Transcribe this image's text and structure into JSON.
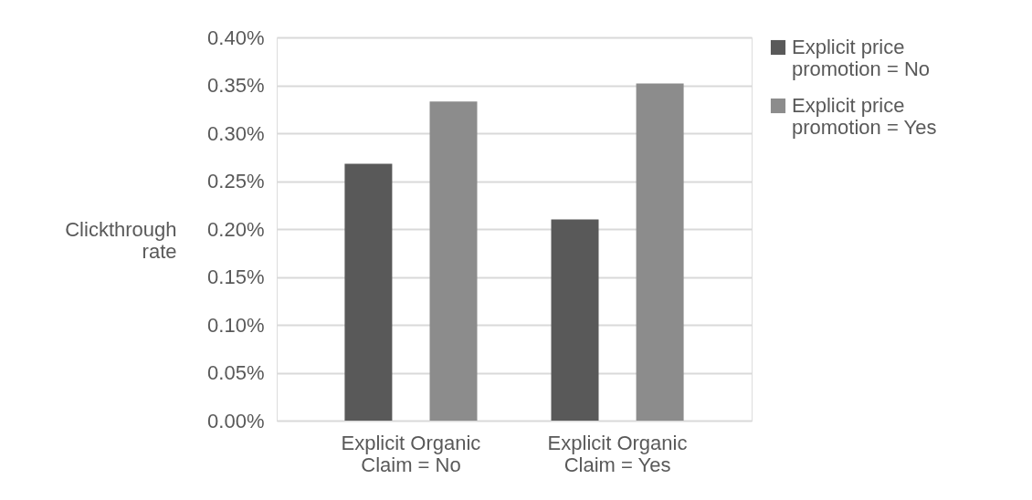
{
  "chart_data": {
    "type": "bar",
    "ylabel": "Clickthrough rate",
    "categories": [
      "Explicit Organic Claim = No",
      "Explicit Organic Claim = Yes"
    ],
    "series": [
      {
        "name": "Explicit price promotion = No",
        "color": "#595959",
        "values": [
          0.268,
          0.21
        ]
      },
      {
        "name": "Explicit price promotion = Yes",
        "color": "#8c8c8c",
        "values": [
          0.333,
          0.352
        ]
      }
    ],
    "ylim": [
      0,
      0.4
    ],
    "yticks": [
      {
        "value": 0,
        "label": "0.00%"
      },
      {
        "value": 0.05,
        "label": "0.05%"
      },
      {
        "value": 0.1,
        "label": "0.10%"
      },
      {
        "value": 0.15,
        "label": "0.15%"
      },
      {
        "value": 0.2,
        "label": "0.20%"
      },
      {
        "value": 0.25,
        "label": "0.25%"
      },
      {
        "value": 0.3,
        "label": "0.30%"
      },
      {
        "value": 0.35,
        "label": "0.35%"
      },
      {
        "value": 0.4,
        "label": "0.40%"
      }
    ],
    "grid": "y",
    "legend": "right"
  }
}
